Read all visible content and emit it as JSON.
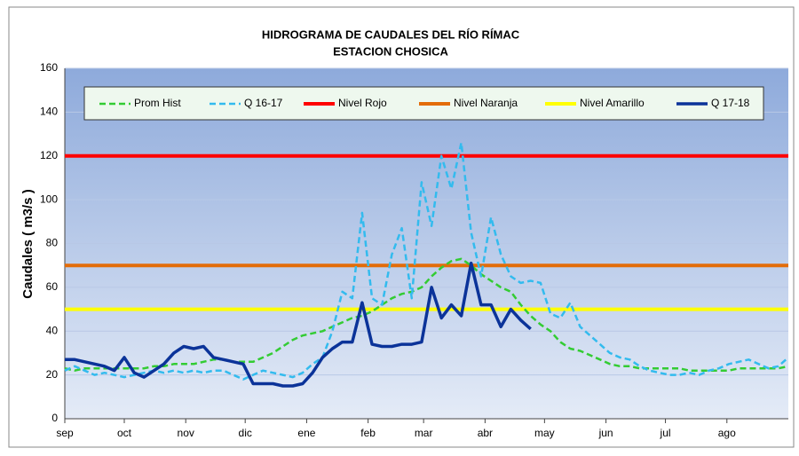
{
  "chart_data": {
    "type": "line",
    "title": "HIDROGRAMA DE CAUDALES DEL RÍO  RÍMAC",
    "subtitle": "ESTACION CHOSICA",
    "y_label": "Caudales ( m3/s )",
    "xlim": [
      0,
      365
    ],
    "xticks": [
      {
        "value": 0,
        "label": "sep"
      },
      {
        "value": 30,
        "label": "oct"
      },
      {
        "value": 61,
        "label": "nov"
      },
      {
        "value": 91,
        "label": "dic"
      },
      {
        "value": 122,
        "label": "ene"
      },
      {
        "value": 153,
        "label": "feb"
      },
      {
        "value": 181,
        "label": "mar"
      },
      {
        "value": 212,
        "label": "abr"
      },
      {
        "value": 242,
        "label": "may"
      },
      {
        "value": 273,
        "label": "jun"
      },
      {
        "value": 303,
        "label": "jul"
      },
      {
        "value": 334,
        "label": "ago"
      }
    ],
    "ylim": [
      0,
      160
    ],
    "yticks": [
      0,
      20,
      40,
      60,
      80,
      100,
      120,
      140,
      160
    ],
    "grid": true,
    "x": [
      0,
      5,
      10,
      15,
      20,
      25,
      30,
      35,
      40,
      45,
      50,
      55,
      60,
      65,
      70,
      75,
      80,
      85,
      90,
      95,
      100,
      105,
      110,
      115,
      120,
      125,
      130,
      135,
      140,
      145,
      150,
      155,
      160,
      165,
      170,
      175,
      180,
      185,
      190,
      195,
      200,
      205,
      210,
      215,
      220,
      225,
      230,
      235,
      240,
      245,
      250,
      255,
      260,
      265,
      270,
      275,
      280,
      285,
      290,
      295,
      300,
      305,
      310,
      315,
      320,
      325,
      330,
      335,
      340,
      345,
      350,
      355,
      360,
      365
    ],
    "series": [
      {
        "name": "Prom Hist",
        "color": "#33cc33",
        "dashed": true,
        "values": [
          23,
          22,
          23,
          23,
          23,
          23,
          23,
          23,
          23,
          24,
          24,
          25,
          25,
          25,
          26,
          27,
          27,
          26,
          26,
          26,
          28,
          30,
          33,
          36,
          38,
          39,
          40,
          42,
          44,
          46,
          47,
          49,
          52,
          55,
          57,
          58,
          60,
          65,
          69,
          72,
          73,
          70,
          66,
          63,
          60,
          58,
          52,
          47,
          43,
          40,
          35,
          32,
          31,
          29,
          27,
          25,
          24,
          24,
          23,
          23,
          23,
          23,
          23,
          22,
          22,
          22,
          22,
          22,
          23,
          23,
          23,
          23,
          23,
          24
        ]
      },
      {
        "name": "Q 16-17",
        "color": "#33bbee",
        "dashed": true,
        "values": [
          22,
          24,
          22,
          20,
          21,
          20,
          19,
          20,
          21,
          22,
          21,
          22,
          21,
          22,
          21,
          22,
          22,
          20,
          18,
          20,
          22,
          21,
          20,
          19,
          21,
          25,
          28,
          40,
          58,
          55,
          94,
          55,
          52,
          75,
          87,
          55,
          108,
          88,
          120,
          105,
          126,
          85,
          65,
          92,
          75,
          65,
          62,
          63,
          62,
          48,
          46,
          53,
          42,
          38,
          34,
          30,
          28,
          27,
          24,
          22,
          21,
          20,
          20,
          21,
          20,
          22,
          23,
          25,
          26,
          27,
          25,
          23,
          24,
          28
        ]
      },
      {
        "name": "Nivel Rojo",
        "color": "#ff0000",
        "level": 120
      },
      {
        "name": "Nivel Naranja",
        "color": "#e36c09",
        "level": 70
      },
      {
        "name": "Nivel Amarillo",
        "color": "#ffff00",
        "level": 50
      },
      {
        "name": "Q 17-18",
        "color": "#0b3399",
        "dashed": false,
        "values": [
          27,
          27,
          26,
          25,
          24,
          22,
          28,
          21,
          19,
          22,
          25,
          30,
          33,
          32,
          33,
          28,
          27,
          26,
          25,
          16,
          16,
          16,
          15,
          15,
          16,
          21,
          28,
          32,
          35,
          35,
          53,
          34,
          33,
          33,
          34,
          34,
          35,
          60,
          46,
          52,
          47,
          71,
          52,
          52,
          42,
          50,
          45,
          41,
          null,
          null,
          null,
          null,
          null,
          null,
          null,
          null,
          null,
          null,
          null,
          null,
          null,
          null,
          null,
          null,
          null,
          null,
          null,
          null,
          null,
          null,
          null,
          null,
          null,
          null
        ]
      }
    ]
  }
}
